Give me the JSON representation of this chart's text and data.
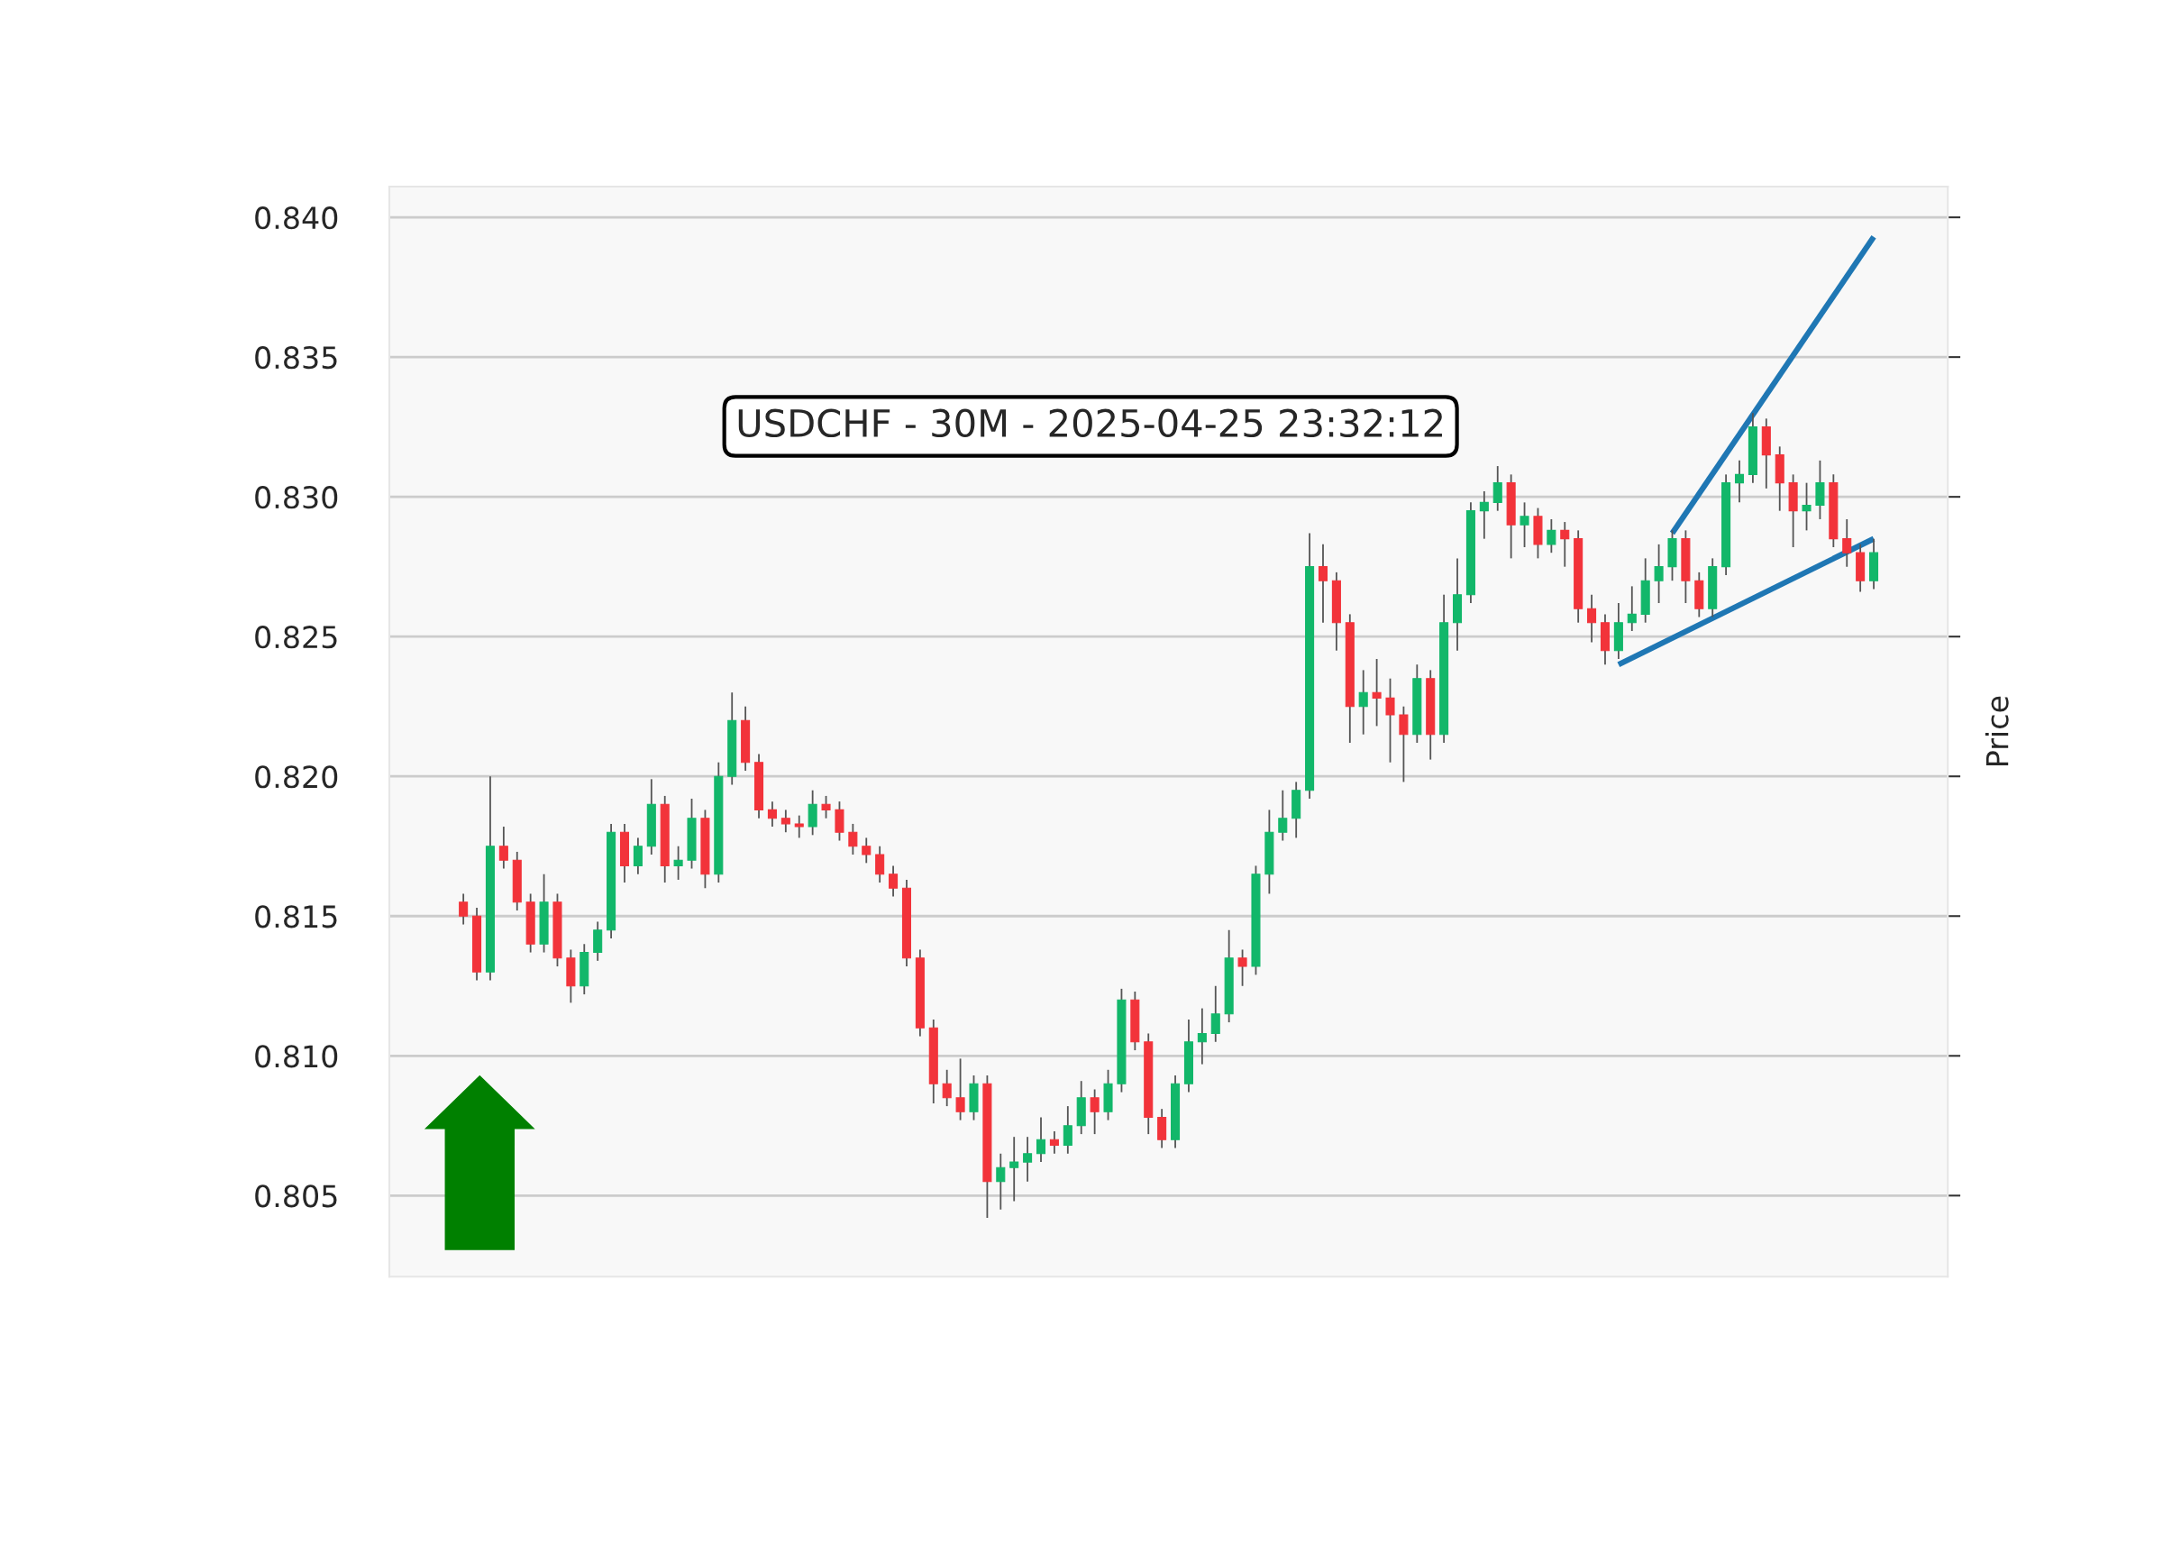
{
  "chart_data": {
    "type": "candlestick",
    "title": "USDCHF - 30M - 2025-04-25 23:32:12",
    "ylabel": "Price",
    "categories": [
      null,
      null,
      null,
      null,
      null,
      null,
      null,
      null,
      null,
      null,
      null,
      null,
      null,
      null,
      null,
      null,
      null,
      null,
      null,
      null,
      null,
      null,
      null,
      null,
      null,
      null,
      null,
      null,
      null,
      null,
      null,
      null,
      null,
      null,
      null,
      null,
      null,
      null,
      null,
      null,
      null,
      null,
      null,
      null,
      null,
      null,
      null,
      null,
      null,
      null,
      null,
      null,
      null,
      null,
      null,
      null,
      null,
      null,
      null,
      null,
      null,
      null,
      null,
      null,
      null,
      null,
      null,
      null,
      null,
      null,
      null,
      null,
      null,
      null,
      null,
      null,
      null,
      null,
      null,
      null,
      null,
      null,
      null,
      null,
      null,
      null,
      null,
      null,
      null,
      null,
      null,
      null,
      null,
      null,
      null,
      null,
      null,
      null,
      null,
      null,
      null,
      null,
      null,
      null,
      null,
      null
    ],
    "ohlc": [
      [
        0.8155,
        0.8158,
        0.8147,
        0.815
      ],
      [
        0.815,
        0.8153,
        0.8127,
        0.813
      ],
      [
        0.813,
        0.82,
        0.8127,
        0.8175
      ],
      [
        0.8175,
        0.8182,
        0.8167,
        0.817
      ],
      [
        0.817,
        0.8173,
        0.8152,
        0.8155
      ],
      [
        0.8155,
        0.8158,
        0.8137,
        0.814
      ],
      [
        0.814,
        0.8165,
        0.8137,
        0.8155
      ],
      [
        0.8155,
        0.8158,
        0.8132,
        0.8135
      ],
      [
        0.8135,
        0.8138,
        0.8119,
        0.8125
      ],
      [
        0.8125,
        0.814,
        0.8122,
        0.8137
      ],
      [
        0.8137,
        0.8148,
        0.8134,
        0.8145
      ],
      [
        0.8145,
        0.8183,
        0.8142,
        0.818
      ],
      [
        0.818,
        0.8183,
        0.8162,
        0.8168
      ],
      [
        0.8168,
        0.8178,
        0.8165,
        0.8175
      ],
      [
        0.8175,
        0.8199,
        0.8172,
        0.819
      ],
      [
        0.819,
        0.8193,
        0.8162,
        0.8168
      ],
      [
        0.8168,
        0.8175,
        0.8163,
        0.817
      ],
      [
        0.817,
        0.8192,
        0.8167,
        0.8185
      ],
      [
        0.8185,
        0.8188,
        0.816,
        0.8165
      ],
      [
        0.8165,
        0.8205,
        0.8162,
        0.82
      ],
      [
        0.82,
        0.823,
        0.8197,
        0.822
      ],
      [
        0.822,
        0.8225,
        0.8202,
        0.8205
      ],
      [
        0.8205,
        0.8208,
        0.8185,
        0.8188
      ],
      [
        0.8188,
        0.8191,
        0.8182,
        0.8185
      ],
      [
        0.8185,
        0.8188,
        0.818,
        0.8183
      ],
      [
        0.8183,
        0.8186,
        0.8178,
        0.8182
      ],
      [
        0.8182,
        0.8195,
        0.8179,
        0.819
      ],
      [
        0.819,
        0.8193,
        0.8185,
        0.8188
      ],
      [
        0.8188,
        0.8191,
        0.8177,
        0.818
      ],
      [
        0.818,
        0.8183,
        0.8172,
        0.8175
      ],
      [
        0.8175,
        0.8178,
        0.8169,
        0.8172
      ],
      [
        0.8172,
        0.8175,
        0.8162,
        0.8165
      ],
      [
        0.8165,
        0.8168,
        0.8157,
        0.816
      ],
      [
        0.816,
        0.8163,
        0.8132,
        0.8135
      ],
      [
        0.8135,
        0.8138,
        0.8107,
        0.811
      ],
      [
        0.811,
        0.8113,
        0.8083,
        0.809
      ],
      [
        0.809,
        0.8095,
        0.8082,
        0.8085
      ],
      [
        0.8085,
        0.8099,
        0.8077,
        0.808
      ],
      [
        0.808,
        0.8093,
        0.8077,
        0.809
      ],
      [
        0.809,
        0.8093,
        0.8042,
        0.8055
      ],
      [
        0.8055,
        0.8065,
        0.8045,
        0.806
      ],
      [
        0.806,
        0.8071,
        0.8048,
        0.8062
      ],
      [
        0.8062,
        0.8071,
        0.8055,
        0.8065
      ],
      [
        0.8065,
        0.8078,
        0.8062,
        0.807
      ],
      [
        0.807,
        0.8073,
        0.8065,
        0.8068
      ],
      [
        0.8068,
        0.8082,
        0.8065,
        0.8075
      ],
      [
        0.8075,
        0.8091,
        0.8072,
        0.8085
      ],
      [
        0.8085,
        0.8088,
        0.8072,
        0.808
      ],
      [
        0.808,
        0.8095,
        0.8077,
        0.809
      ],
      [
        0.809,
        0.8124,
        0.8087,
        0.812
      ],
      [
        0.812,
        0.8123,
        0.8102,
        0.8105
      ],
      [
        0.8105,
        0.8108,
        0.8072,
        0.8078
      ],
      [
        0.8078,
        0.8081,
        0.8067,
        0.807
      ],
      [
        0.807,
        0.8093,
        0.8067,
        0.809
      ],
      [
        0.809,
        0.8113,
        0.8087,
        0.8105
      ],
      [
        0.8105,
        0.8117,
        0.8097,
        0.8108
      ],
      [
        0.8108,
        0.8125,
        0.8105,
        0.8115
      ],
      [
        0.8115,
        0.8145,
        0.8112,
        0.8135
      ],
      [
        0.8135,
        0.8138,
        0.8125,
        0.8132
      ],
      [
        0.8132,
        0.8168,
        0.8129,
        0.8165
      ],
      [
        0.8165,
        0.8188,
        0.8158,
        0.818
      ],
      [
        0.818,
        0.8195,
        0.8177,
        0.8185
      ],
      [
        0.8185,
        0.8198,
        0.8178,
        0.8195
      ],
      [
        0.8195,
        0.8287,
        0.8192,
        0.8275
      ],
      [
        0.8275,
        0.8283,
        0.8255,
        0.827
      ],
      [
        0.827,
        0.8273,
        0.8245,
        0.8255
      ],
      [
        0.8255,
        0.8258,
        0.8212,
        0.8225
      ],
      [
        0.8225,
        0.8238,
        0.8215,
        0.823
      ],
      [
        0.823,
        0.8242,
        0.8218,
        0.8228
      ],
      [
        0.8228,
        0.8235,
        0.8205,
        0.8222
      ],
      [
        0.8222,
        0.8225,
        0.8198,
        0.8215
      ],
      [
        0.8215,
        0.824,
        0.8212,
        0.8235
      ],
      [
        0.8235,
        0.8238,
        0.8206,
        0.8215
      ],
      [
        0.8215,
        0.8265,
        0.8212,
        0.8255
      ],
      [
        0.8255,
        0.8278,
        0.8245,
        0.8265
      ],
      [
        0.8265,
        0.8298,
        0.8262,
        0.8295
      ],
      [
        0.8295,
        0.8302,
        0.8285,
        0.8298
      ],
      [
        0.8298,
        0.8311,
        0.8295,
        0.8305
      ],
      [
        0.8305,
        0.8308,
        0.8278,
        0.829
      ],
      [
        0.829,
        0.8298,
        0.8282,
        0.8293
      ],
      [
        0.8293,
        0.8296,
        0.8278,
        0.8283
      ],
      [
        0.8283,
        0.8292,
        0.828,
        0.8288
      ],
      [
        0.8288,
        0.8291,
        0.8275,
        0.8285
      ],
      [
        0.8285,
        0.8288,
        0.8255,
        0.826
      ],
      [
        0.826,
        0.8265,
        0.8248,
        0.8255
      ],
      [
        0.8255,
        0.8258,
        0.824,
        0.8245
      ],
      [
        0.8245,
        0.8262,
        0.8242,
        0.8255
      ],
      [
        0.8255,
        0.8268,
        0.8252,
        0.8258
      ],
      [
        0.8258,
        0.8278,
        0.8255,
        0.827
      ],
      [
        0.827,
        0.8283,
        0.8262,
        0.8275
      ],
      [
        0.8275,
        0.8288,
        0.827,
        0.8285
      ],
      [
        0.8285,
        0.8288,
        0.8262,
        0.827
      ],
      [
        0.827,
        0.8273,
        0.8257,
        0.826
      ],
      [
        0.826,
        0.8278,
        0.8257,
        0.8275
      ],
      [
        0.8275,
        0.8308,
        0.8272,
        0.8305
      ],
      [
        0.8305,
        0.8313,
        0.8298,
        0.8308
      ],
      [
        0.8308,
        0.833,
        0.8305,
        0.8325
      ],
      [
        0.8325,
        0.8328,
        0.8303,
        0.8315
      ],
      [
        0.8315,
        0.8318,
        0.8295,
        0.8305
      ],
      [
        0.8305,
        0.8308,
        0.8282,
        0.8295
      ],
      [
        0.8295,
        0.8305,
        0.8288,
        0.8297
      ],
      [
        0.8297,
        0.8313,
        0.8292,
        0.8305
      ],
      [
        0.8305,
        0.8308,
        0.8282,
        0.8285
      ],
      [
        0.8285,
        0.8292,
        0.8275,
        0.828
      ],
      [
        0.828,
        0.8283,
        0.8266,
        0.827
      ],
      [
        0.827,
        0.8285,
        0.8267,
        0.828
      ]
    ],
    "series": [
      {
        "type": "line",
        "color": "#1f77b4",
        "values": [
          null,
          null,
          null,
          null,
          null,
          null,
          null,
          null,
          null,
          null,
          null,
          null,
          null,
          null,
          null,
          null,
          null,
          null,
          null,
          null,
          null,
          null,
          null,
          null,
          null,
          null,
          null,
          null,
          null,
          null,
          null,
          null,
          null,
          null,
          null,
          null,
          null,
          null,
          null,
          null,
          null,
          null,
          null,
          null,
          null,
          null,
          null,
          null,
          null,
          null,
          null,
          null,
          null,
          null,
          null,
          null,
          null,
          null,
          null,
          null,
          null,
          null,
          null,
          null,
          null,
          null,
          null,
          null,
          null,
          null,
          null,
          null,
          null,
          null,
          null,
          null,
          null,
          null,
          null,
          null,
          null,
          null,
          null,
          null,
          null,
          null,
          null,
          null,
          null,
          null,
          0.8287,
          null,
          null,
          null,
          null,
          null,
          null,
          null,
          null,
          null,
          null,
          null,
          null,
          null,
          null,
          0.8393
        ]
      },
      {
        "type": "line",
        "color": "#1f77b4",
        "values": [
          null,
          null,
          null,
          null,
          null,
          null,
          null,
          null,
          null,
          null,
          null,
          null,
          null,
          null,
          null,
          null,
          null,
          null,
          null,
          null,
          null,
          null,
          null,
          null,
          null,
          null,
          null,
          null,
          null,
          null,
          null,
          null,
          null,
          null,
          null,
          null,
          null,
          null,
          null,
          null,
          null,
          null,
          null,
          null,
          null,
          null,
          null,
          null,
          null,
          null,
          null,
          null,
          null,
          null,
          null,
          null,
          null,
          null,
          null,
          null,
          null,
          null,
          null,
          null,
          null,
          null,
          null,
          null,
          null,
          null,
          null,
          null,
          null,
          null,
          null,
          null,
          null,
          null,
          null,
          null,
          null,
          null,
          null,
          null,
          null,
          null,
          0.824,
          null,
          null,
          null,
          null,
          null,
          null,
          null,
          null,
          null,
          null,
          null,
          null,
          null,
          null,
          null,
          null,
          null,
          null,
          0.8285
        ]
      }
    ],
    "ylim": [
      0.8021,
      0.8411
    ],
    "yticks": [
      0.805,
      {
        "value": 0.81,
        "label": "0.810"
      },
      0.815,
      {
        "value": 0.82,
        "label": "0.820"
      },
      0.825,
      {
        "value": 0.83,
        "label": "0.830"
      },
      0.835,
      {
        "value": 0.84,
        "label": "0.840"
      }
    ],
    "grid": "y"
  }
}
